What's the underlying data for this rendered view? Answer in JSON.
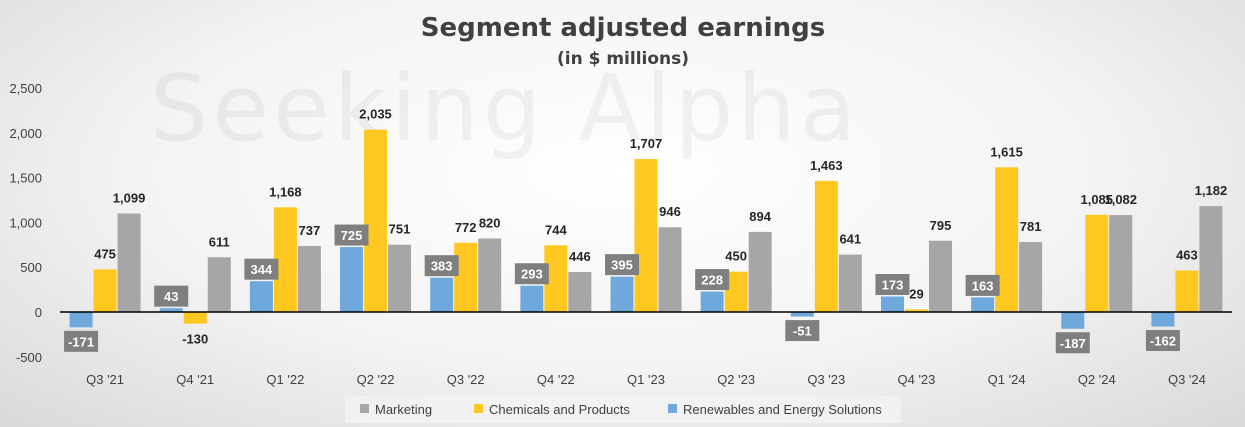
{
  "chart_data": {
    "type": "bar",
    "title": "Segment adjusted earnings",
    "subtitle": "(in $ millions)",
    "watermark": "Seeking Alpha",
    "categories": [
      "Q3 '21",
      "Q4 '21",
      "Q1 '22",
      "Q2 '22",
      "Q3 '22",
      "Q4 '22",
      "Q1 '23",
      "Q2 '23",
      "Q3 '23",
      "Q4 '23",
      "Q1 '24",
      "Q2 '24",
      "Q3 '24"
    ],
    "series": [
      {
        "name": "Renewables and Energy Solutions",
        "color": "#6fa8dc",
        "label_style": "boxed",
        "values": [
          -171,
          43,
          344,
          725,
          383,
          293,
          395,
          228,
          -51,
          173,
          163,
          -187,
          -162
        ]
      },
      {
        "name": "Chemicals and Products",
        "color": "#ffc820",
        "label_style": "plain",
        "values": [
          475,
          -130,
          1168,
          2035,
          772,
          744,
          1707,
          450,
          1463,
          29,
          1615,
          1085,
          463
        ]
      },
      {
        "name": "Marketing",
        "color": "#a6a6a6",
        "label_style": "plain",
        "values": [
          1099,
          611,
          737,
          751,
          820,
          446,
          946,
          894,
          641,
          795,
          781,
          1082,
          1182
        ]
      }
    ],
    "legend_order": [
      "Marketing",
      "Chemicals and Products",
      "Renewables and Energy Solutions"
    ],
    "legend_position": "bottom",
    "ylim": [
      -500,
      2500
    ],
    "yticks": [
      -500,
      0,
      500,
      1000,
      1500,
      2000,
      2500
    ],
    "ytick_labels": [
      "-500",
      "0",
      "500",
      "1,000",
      "1,500",
      "2,000",
      "2,500"
    ],
    "xlabel": "",
    "ylabel": "",
    "grid": false
  }
}
